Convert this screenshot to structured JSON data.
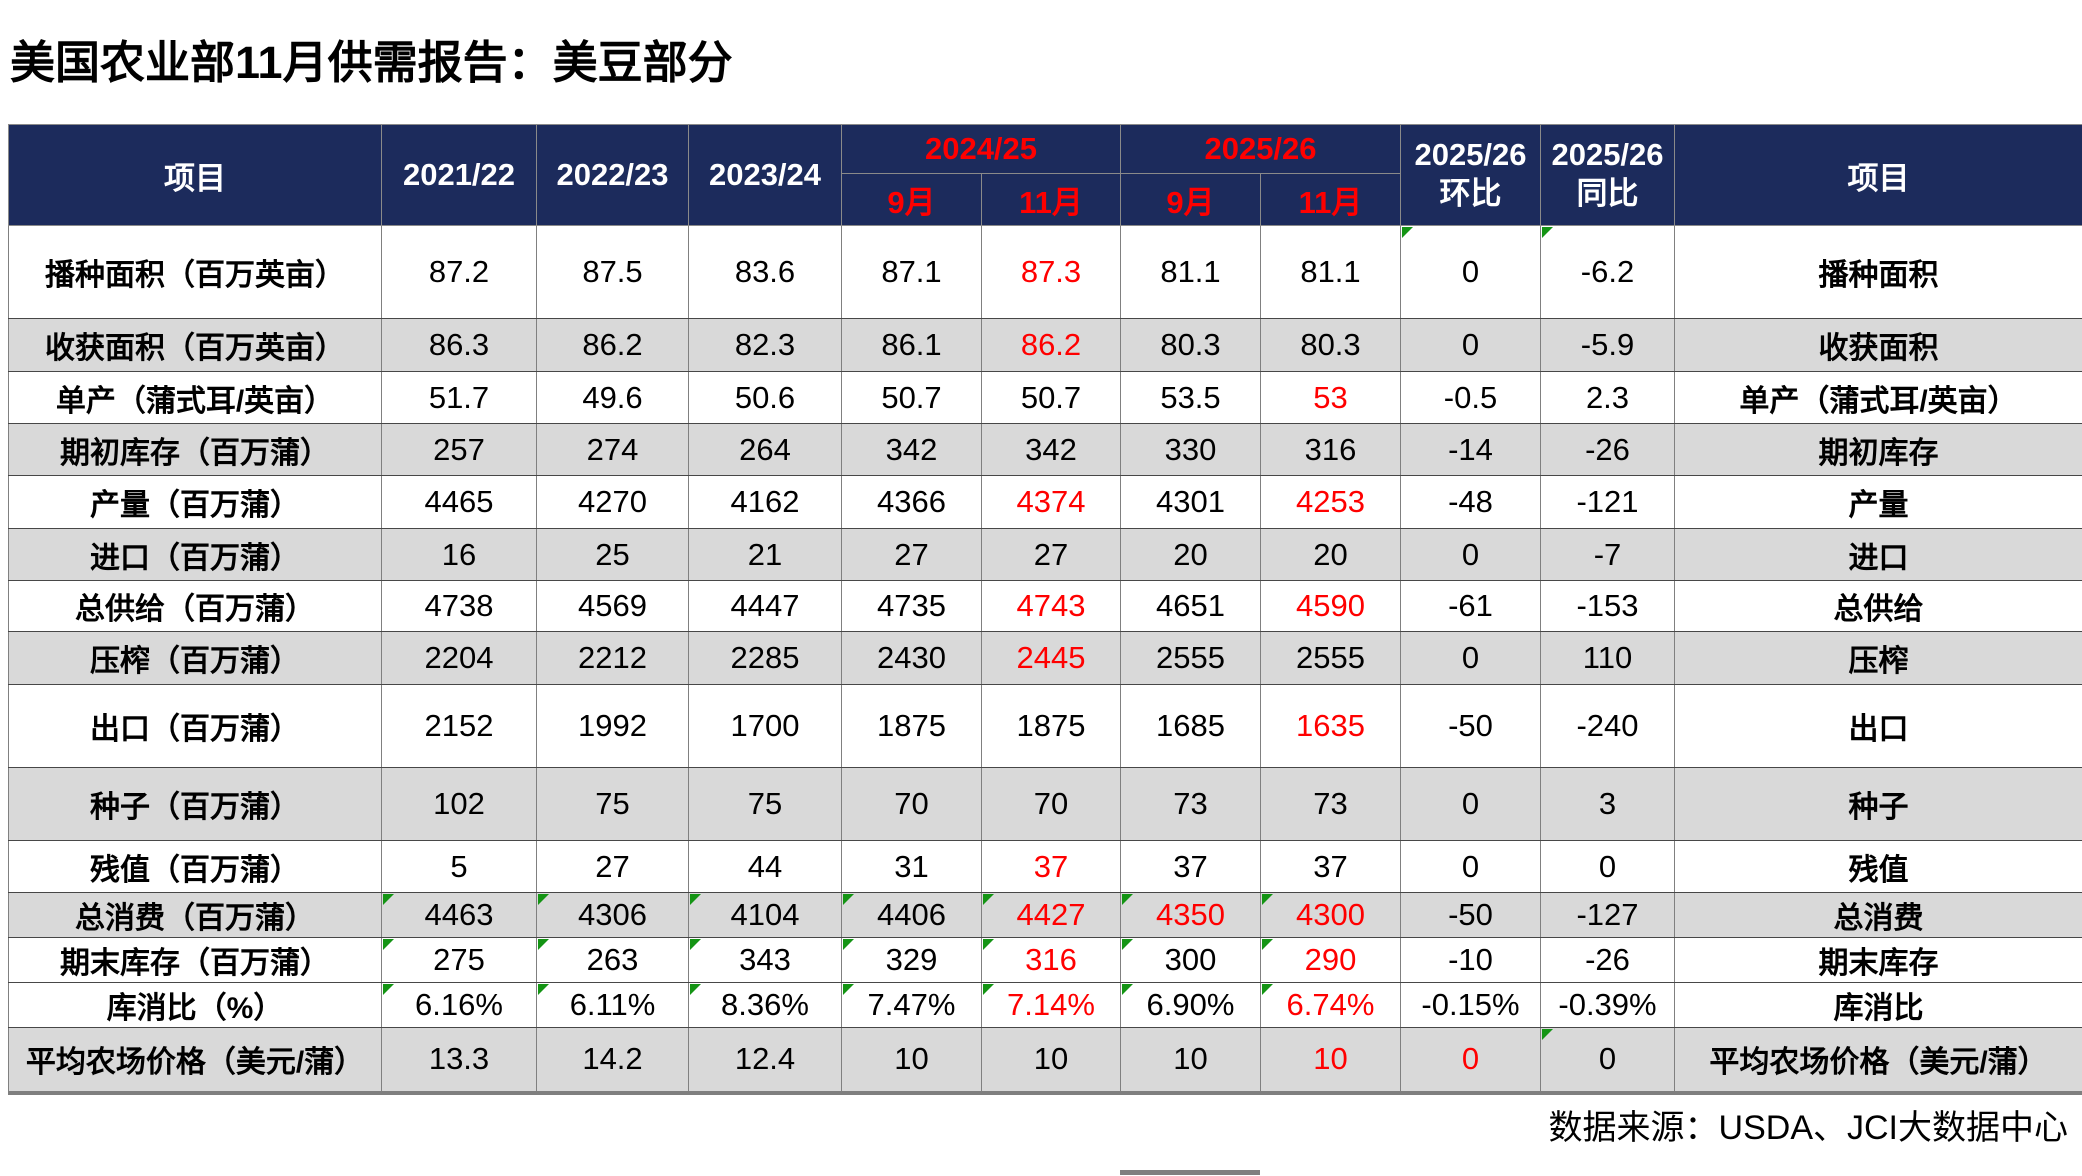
{
  "title": "美国农业部11月供需报告：美豆部分",
  "source_note": "数据来源：USDA、JCI大数据中心",
  "colors": {
    "header_bg": "#1c2b5c",
    "highlight_red": "#ff0000",
    "shaded_row": "#d9d9d9",
    "flag_green": "#149414",
    "scrollbar_gray": "#7f7f7f"
  },
  "table": {
    "header": {
      "item_left": "项目",
      "item_right": "项目",
      "years": [
        "2021/22",
        "2022/23",
        "2023/24"
      ],
      "groups": [
        {
          "label": "2024/25",
          "months": [
            "9月",
            "11月"
          ]
        },
        {
          "label": "2025/26",
          "months": [
            "9月",
            "11月"
          ]
        }
      ],
      "mom": {
        "line1": "2025/26",
        "line2": "环比"
      },
      "yoy": {
        "line1": "2025/26",
        "line2": "同比"
      }
    },
    "rows": [
      {
        "label": "播种面积（百万英亩）",
        "label_right": "播种面积",
        "values": [
          "87.2",
          "87.5",
          "83.6",
          "87.1",
          "87.3",
          "81.1",
          "81.1",
          "0",
          "-6.2"
        ],
        "red": [
          4
        ],
        "flags": [
          7,
          8
        ]
      },
      {
        "label": "收获面积（百万英亩）",
        "label_right": "收获面积",
        "values": [
          "86.3",
          "86.2",
          "82.3",
          "86.1",
          "86.2",
          "80.3",
          "80.3",
          "0",
          "-5.9"
        ],
        "red": [
          4
        ],
        "flags": []
      },
      {
        "label": "单产（蒲式耳/英亩）",
        "label_right": "单产（蒲式耳/英亩）",
        "values": [
          "51.7",
          "49.6",
          "50.6",
          "50.7",
          "50.7",
          "53.5",
          "53",
          "-0.5",
          "2.3"
        ],
        "red": [
          6
        ],
        "flags": []
      },
      {
        "label": "期初库存（百万蒲）",
        "label_right": "期初库存",
        "values": [
          "257",
          "274",
          "264",
          "342",
          "342",
          "330",
          "316",
          "-14",
          "-26"
        ],
        "red": [],
        "flags": []
      },
      {
        "label": "产量（百万蒲）",
        "label_right": "产量",
        "values": [
          "4465",
          "4270",
          "4162",
          "4366",
          "4374",
          "4301",
          "4253",
          "-48",
          "-121"
        ],
        "red": [
          4,
          6
        ],
        "flags": []
      },
      {
        "label": "进口（百万蒲）",
        "label_right": "进口",
        "values": [
          "16",
          "25",
          "21",
          "27",
          "27",
          "20",
          "20",
          "0",
          "-7"
        ],
        "red": [],
        "flags": []
      },
      {
        "label": "总供给（百万蒲）",
        "label_right": "总供给",
        "values": [
          "4738",
          "4569",
          "4447",
          "4735",
          "4743",
          "4651",
          "4590",
          "-61",
          "-153"
        ],
        "red": [
          4,
          6
        ],
        "flags": []
      },
      {
        "label": "压榨（百万蒲）",
        "label_right": "压榨",
        "values": [
          "2204",
          "2212",
          "2285",
          "2430",
          "2445",
          "2555",
          "2555",
          "0",
          "110"
        ],
        "red": [
          4
        ],
        "flags": []
      },
      {
        "label": "出口（百万蒲）",
        "label_right": "出口",
        "values": [
          "2152",
          "1992",
          "1700",
          "1875",
          "1875",
          "1685",
          "1635",
          "-50",
          "-240"
        ],
        "red": [
          6
        ],
        "flags": []
      },
      {
        "label": "种子（百万蒲）",
        "label_right": "种子",
        "values": [
          "102",
          "75",
          "75",
          "70",
          "70",
          "73",
          "73",
          "0",
          "3"
        ],
        "red": [],
        "flags": []
      },
      {
        "label": "残值（百万蒲）",
        "label_right": "残值",
        "values": [
          "5",
          "27",
          "44",
          "31",
          "37",
          "37",
          "37",
          "0",
          "0"
        ],
        "red": [
          4
        ],
        "flags": []
      },
      {
        "label": "总消费（百万蒲）",
        "label_right": "总消费",
        "values": [
          "4463",
          "4306",
          "4104",
          "4406",
          "4427",
          "4350",
          "4300",
          "-50",
          "-127"
        ],
        "red": [
          4,
          5,
          6
        ],
        "flags": [
          0,
          1,
          2,
          3,
          4,
          5,
          6
        ]
      },
      {
        "label": "期末库存（百万蒲）",
        "label_right": "期末库存",
        "values": [
          "275",
          "263",
          "343",
          "329",
          "316",
          "300",
          "290",
          "-10",
          "-26"
        ],
        "red": [
          4,
          6
        ],
        "flags": [
          0,
          1,
          2,
          3,
          4,
          5,
          6
        ]
      },
      {
        "label": "库消比（%）",
        "label_right": "库消比",
        "values": [
          "6.16%",
          "6.11%",
          "8.36%",
          "7.47%",
          "7.14%",
          "6.90%",
          "6.74%",
          "-0.15%",
          "-0.39%"
        ],
        "red": [
          4,
          6
        ],
        "flags": [
          0,
          1,
          2,
          3,
          4,
          5,
          6
        ]
      },
      {
        "label": "平均农场价格（美元/蒲）",
        "label_right": "平均农场价格（美元/蒲）",
        "values": [
          "13.3",
          "14.2",
          "12.4",
          "10",
          "10",
          "10",
          "10",
          "0",
          "0"
        ],
        "red": [
          6,
          7
        ],
        "flags": [
          8
        ]
      }
    ]
  }
}
